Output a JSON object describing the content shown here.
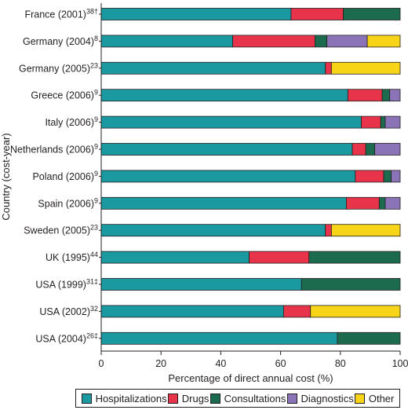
{
  "chart_data": {
    "type": "bar",
    "orientation": "horizontal",
    "stacked": true,
    "xlabel": "Percentage of direct annual cost (%)",
    "ylabel": "Country (cost-year)",
    "xlim": [
      0,
      100
    ],
    "xticks": [
      0,
      20,
      40,
      60,
      80,
      100
    ],
    "grid": false,
    "legend_position": "bottom",
    "categories": [
      {
        "label": "France (2001)",
        "ref": "38†"
      },
      {
        "label": "Germany (2004)",
        "ref": "8"
      },
      {
        "label": "Germany (2005)",
        "ref": "23"
      },
      {
        "label": "Greece (2006)",
        "ref": "9"
      },
      {
        "label": "Italy (2006)",
        "ref": "9"
      },
      {
        "label": "Netherlands (2006)",
        "ref": "9"
      },
      {
        "label": "Poland (2006)",
        "ref": "9"
      },
      {
        "label": "Spain (2006)",
        "ref": "9"
      },
      {
        "label": "Sweden (2005)",
        "ref": "23"
      },
      {
        "label": "UK (1995)",
        "ref": "44"
      },
      {
        "label": "USA (1999)",
        "ref": "31‡"
      },
      {
        "label": "USA (2002)",
        "ref": "32"
      },
      {
        "label": "USA (2004)",
        "ref": "26‡"
      }
    ],
    "series": [
      {
        "name": "Hospitalizations",
        "color": "#1a9aa0",
        "values": [
          63.5,
          44,
          75,
          82.5,
          87,
          84,
          85,
          82,
          75,
          49.5,
          67,
          61,
          79
        ]
      },
      {
        "name": "Drugs",
        "color": "#e8344a",
        "values": [
          17.5,
          27.5,
          2,
          11.5,
          6.5,
          4.5,
          9.5,
          11,
          2,
          20,
          0,
          9,
          0
        ]
      },
      {
        "name": "Consultations",
        "color": "#1d6b4f",
        "values": [
          19,
          4,
          0,
          2.5,
          1.5,
          3,
          2.5,
          2,
          0,
          30.5,
          33,
          0,
          21
        ]
      },
      {
        "name": "Diagnostics",
        "color": "#8b73b7",
        "values": [
          0,
          13.5,
          0,
          3.5,
          5,
          8.5,
          3,
          5,
          0,
          0,
          0,
          0,
          0
        ]
      },
      {
        "name": "Other",
        "color": "#f7d417",
        "values": [
          0,
          11,
          23,
          0,
          0,
          0,
          0,
          0,
          23,
          0,
          0,
          30,
          0
        ]
      }
    ]
  }
}
